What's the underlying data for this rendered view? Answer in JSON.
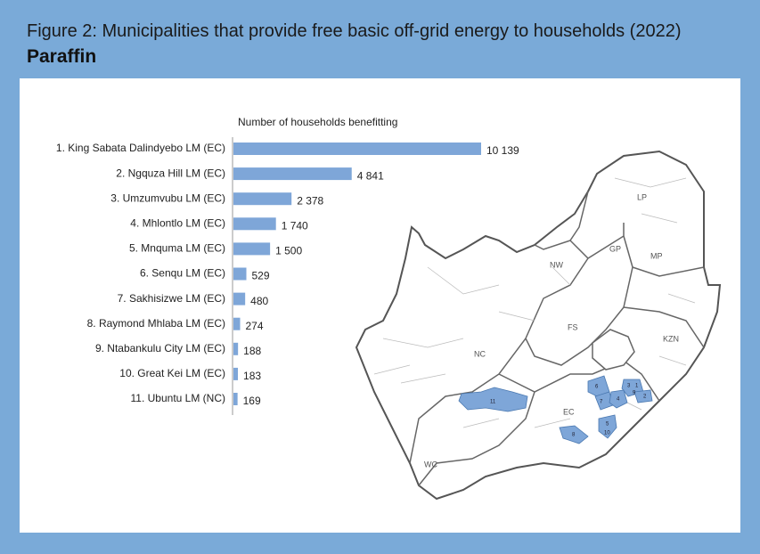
{
  "chart_data": {
    "type": "hbar",
    "title": "Figure 2: Municipalities that provide free basic off-grid energy to households (2022)",
    "subtitle": "Paraffin",
    "value_axis_label": "Number of households benefitting",
    "categories": [
      "1. King Sabata Dalindyebo LM (EC)",
      "2. Ngquza Hill LM (EC)",
      "3. Umzumvubu LM (EC)",
      "4. Mhlontlo LM (EC)",
      "5. Mnquma LM (EC)",
      "6. Senqu LM (EC)",
      "7. Sakhisizwe LM (EC)",
      "8. Raymond Mhlaba LM (EC)",
      "9. Ntabankulu City LM (EC)",
      "10. Great Kei LM (EC)",
      "11. Ubuntu LM (NC)"
    ],
    "values": [
      10139,
      4841,
      2378,
      1740,
      1500,
      529,
      480,
      274,
      188,
      183,
      169
    ],
    "value_labels": [
      "10 139",
      "4 841",
      "2 378",
      "1 740",
      "1 500",
      "529",
      "480",
      "274",
      "188",
      "183",
      "169"
    ],
    "color": "#7ea6d8"
  },
  "map": {
    "provinces": [
      "LP",
      "GP",
      "MP",
      "NW",
      "FS",
      "KZN",
      "NC",
      "EC",
      "WC"
    ],
    "regions": [
      "1",
      "2",
      "3",
      "4",
      "5",
      "6",
      "7",
      "8",
      "9",
      "10",
      "11"
    ]
  }
}
